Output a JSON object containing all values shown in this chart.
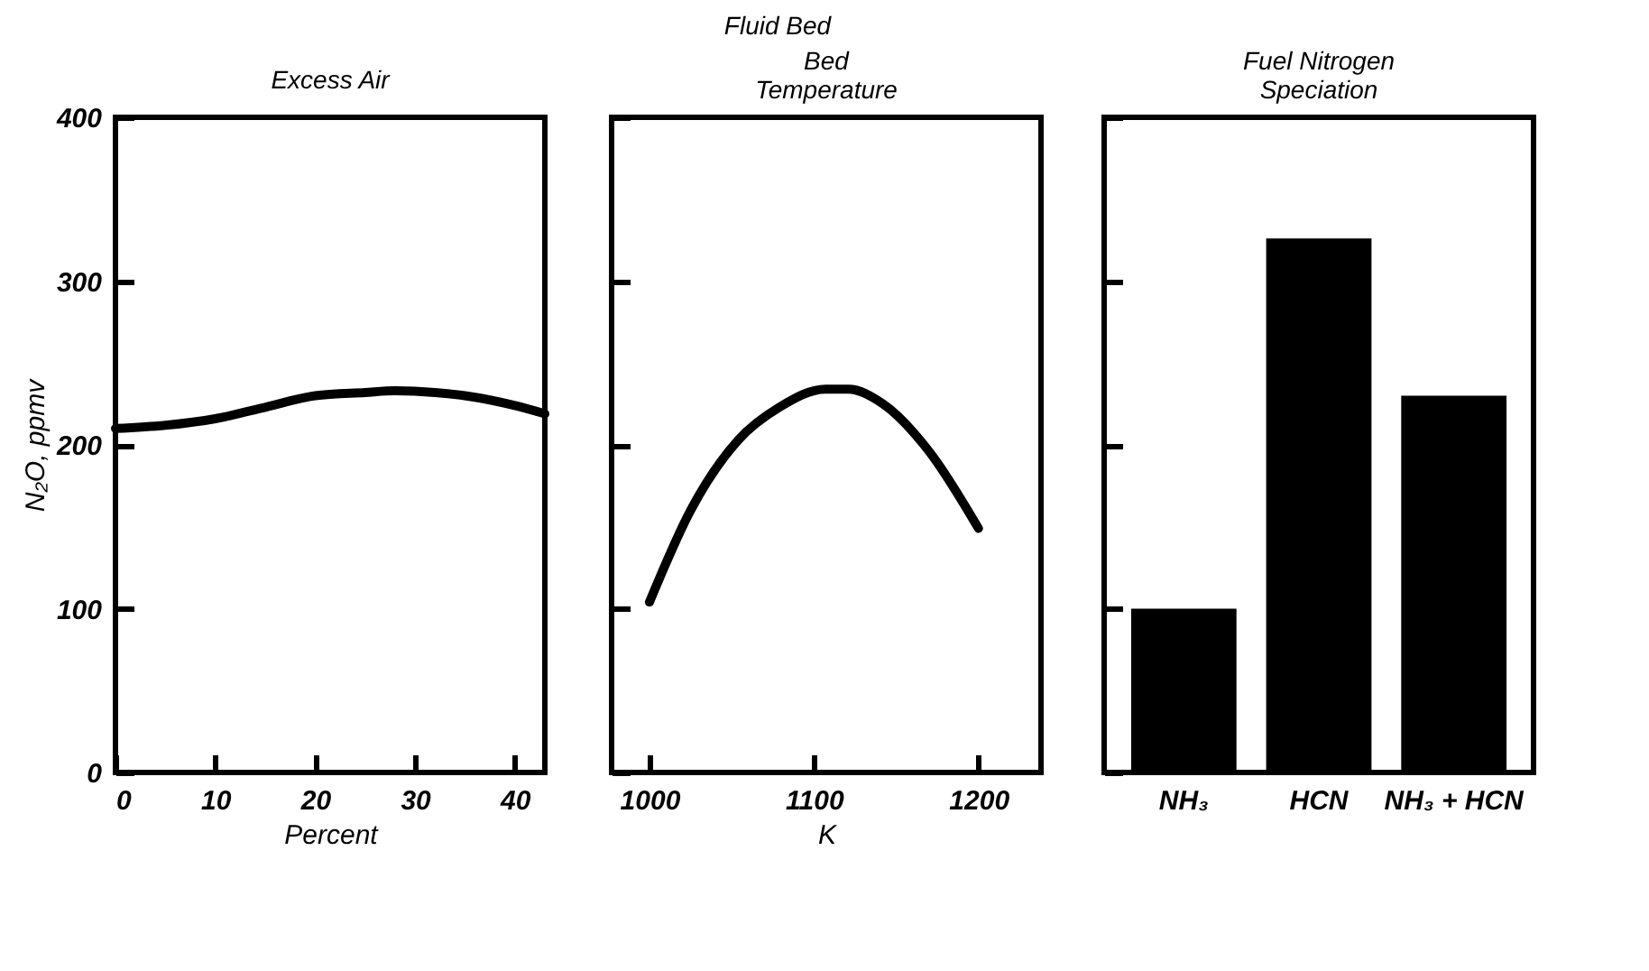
{
  "chart_data": [
    {
      "type": "line",
      "title": "Excess Air",
      "xlabel": "Percent",
      "ylabel": "N₂O, ppmv",
      "x": [
        0,
        5,
        10,
        15,
        20,
        25,
        28,
        32,
        35,
        40,
        43
      ],
      "series": [
        {
          "color": "#000000",
          "values": [
            210,
            212,
            216,
            223,
            230,
            232,
            233,
            232,
            230,
            224,
            219
          ]
        }
      ],
      "xlim": [
        0,
        43
      ],
      "xticks": [
        0,
        10,
        20,
        30,
        40
      ],
      "ylim": [
        0,
        400
      ],
      "yticks": [
        0,
        100,
        200,
        300,
        400
      ]
    },
    {
      "type": "line",
      "title": "Bed Temperature",
      "xlabel": "K",
      "annotations": [
        "Fluid Bed"
      ],
      "x": [
        1000,
        1025,
        1054,
        1079,
        1107,
        1121,
        1142,
        1170,
        1200
      ],
      "series": [
        {
          "color": "#000000",
          "values": [
            104,
            160,
            203,
            223,
            234,
            234,
            225,
            196,
            149
          ]
        }
      ],
      "xlim": [
        977,
        1238
      ],
      "xticks": [
        1000,
        1100,
        1200
      ],
      "ylim": [
        0,
        400
      ],
      "yticks": [
        0,
        100,
        200,
        300,
        400
      ],
      "tick_labels": "x"
    },
    {
      "type": "bar",
      "title": "Fuel Nitrogen Speciation",
      "categories": [
        "NH₃",
        "HCN",
        "NH₃ + HCN"
      ],
      "series": [
        {
          "color": "#000000",
          "values": [
            100,
            326,
            230
          ]
        }
      ],
      "ylim": [
        0,
        400
      ],
      "yticks": [
        0,
        100,
        200,
        300,
        400
      ],
      "tick_labels": "x"
    }
  ]
}
